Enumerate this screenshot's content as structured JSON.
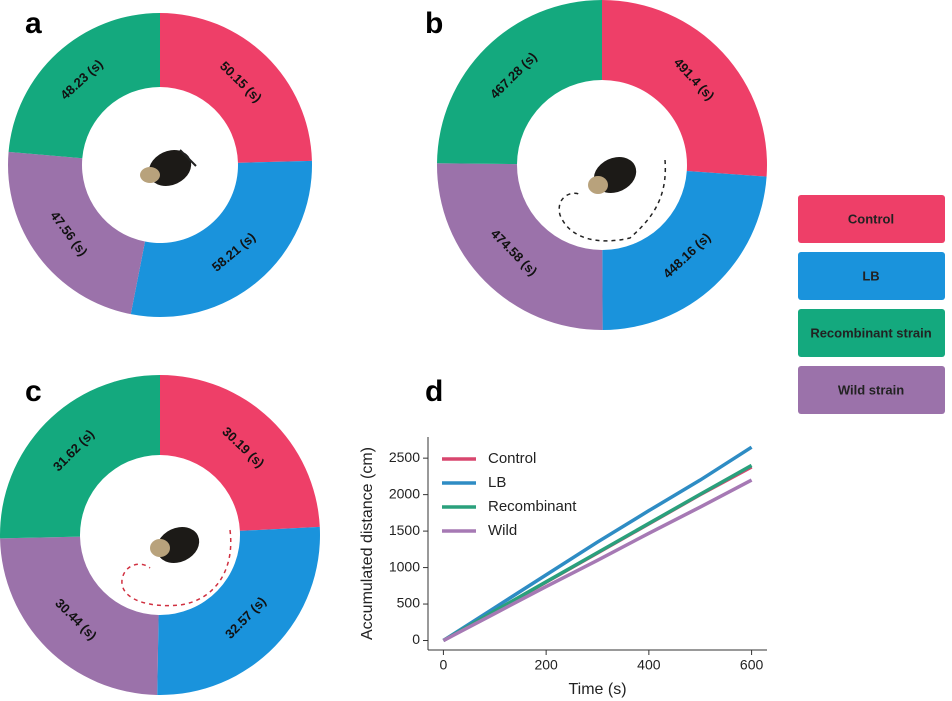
{
  "figure_legend": [
    {
      "name": "Control",
      "color": "#ee3f68"
    },
    {
      "name": "LB",
      "color": "#1a93dc"
    },
    {
      "name": "Recombinant strain",
      "color": "#14a97e"
    },
    {
      "name": "Wild strain",
      "color": "#9b72aa"
    }
  ],
  "chart_data": [
    {
      "type": "donut",
      "panel": "a",
      "values": [
        50.15,
        58.21,
        47.56,
        48.23
      ],
      "value_labels": [
        "50.15 (s)",
        "58.21 (s)",
        "47.56 (s)",
        "48.23 (s)"
      ],
      "colors": [
        "#ee3f68",
        "#1a93dc",
        "#9b72aa",
        "#14a97e"
      ]
    },
    {
      "type": "donut",
      "panel": "b",
      "values": [
        491.4,
        448.16,
        474.58,
        467.28
      ],
      "value_labels": [
        "491.4 (s)",
        "448.16 (s)",
        "474.58 (s)",
        "467.28 (s)"
      ],
      "colors": [
        "#ee3f68",
        "#1a93dc",
        "#9b72aa",
        "#14a97e"
      ]
    },
    {
      "type": "donut",
      "panel": "c",
      "values": [
        30.19,
        32.57,
        30.44,
        31.62
      ],
      "value_labels": [
        "30.19 (s)",
        "32.57 (s)",
        "30.44 (s)",
        "31.62 (s)"
      ],
      "colors": [
        "#ee3f68",
        "#1a93dc",
        "#9b72aa",
        "#14a97e"
      ]
    },
    {
      "type": "line",
      "panel": "d",
      "x": [
        0,
        100,
        200,
        300,
        400,
        500,
        600
      ],
      "series": [
        {
          "name": "Control",
          "color": "#d8466e",
          "values": [
            0,
            400,
            800,
            1200,
            1600,
            2000,
            2380
          ]
        },
        {
          "name": "LB",
          "color": "#2e8cc4",
          "values": [
            0,
            450,
            900,
            1350,
            1780,
            2200,
            2650
          ]
        },
        {
          "name": "Recombinant",
          "color": "#2aa07c",
          "values": [
            0,
            405,
            805,
            1205,
            1605,
            2005,
            2400
          ]
        },
        {
          "name": "Wild",
          "color": "#a679b4",
          "values": [
            0,
            370,
            740,
            1100,
            1470,
            1830,
            2200
          ]
        }
      ],
      "xlim": [
        -30,
        630
      ],
      "ylim": [
        -130,
        2790
      ],
      "xticks": [
        0,
        200,
        400,
        600
      ],
      "yticks": [
        0,
        500,
        1000,
        1500,
        2000,
        2500
      ],
      "xlabel": "Time (s)",
      "ylabel": "Accumulated distance (cm)",
      "legend": "upper left"
    }
  ]
}
